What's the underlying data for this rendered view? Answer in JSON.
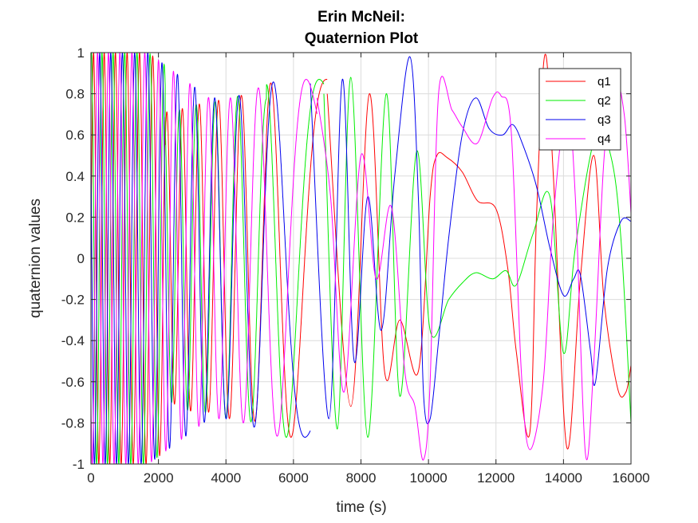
{
  "chart_data": {
    "type": "line",
    "title": [
      "Erin McNeil:",
      "Quaternion Plot"
    ],
    "xlabel": "time (s)",
    "ylabel": "quaternion values",
    "xlim": [
      0,
      16000
    ],
    "ylim": [
      -1,
      1
    ],
    "xticks": [
      0,
      2000,
      4000,
      6000,
      8000,
      10000,
      12000,
      14000,
      16000
    ],
    "xtick_labels": [
      "0",
      "2000",
      "4000",
      "6000",
      "8000",
      "10000",
      "12000",
      "14000",
      "16000"
    ],
    "yticks": [
      -1,
      -0.8,
      -0.6,
      -0.4,
      -0.2,
      0,
      0.2,
      0.4,
      0.6,
      0.8,
      1
    ],
    "ytick_labels": [
      "-1",
      "-0.8",
      "-0.6",
      "-0.4",
      "-0.2",
      "0",
      "0.2",
      "0.4",
      "0.6",
      "0.8",
      "1"
    ],
    "grid": true,
    "box": true,
    "legend": {
      "location": "top-right",
      "entries": [
        "q1",
        "q2",
        "q3",
        "q4"
      ]
    },
    "series": [
      {
        "name": "q1",
        "color": "#ff0000",
        "points": [
          [
            0,
            0.3
          ],
          [
            7000,
            0.8
          ],
          [
            7700,
            -0.72
          ],
          [
            8250,
            0.8
          ],
          [
            8700,
            -0.55
          ],
          [
            9150,
            -0.3
          ],
          [
            9700,
            -0.55
          ],
          [
            10050,
            0.3
          ],
          [
            10250,
            0.5
          ],
          [
            10550,
            0.49
          ],
          [
            11000,
            0.42
          ],
          [
            11450,
            0.28
          ],
          [
            12000,
            0.24
          ],
          [
            12350,
            -0.05
          ],
          [
            12600,
            -0.45
          ],
          [
            13000,
            -0.85
          ],
          [
            13200,
            0.2
          ],
          [
            13450,
            0.99
          ],
          [
            13700,
            0.4
          ],
          [
            14100,
            -0.92
          ],
          [
            14500,
            -0.1
          ],
          [
            14900,
            0.5
          ],
          [
            15200,
            -0.2
          ],
          [
            15600,
            -0.63
          ],
          [
            15850,
            -0.65
          ],
          [
            16000,
            -0.52
          ]
        ]
      },
      {
        "name": "q2",
        "color": "#00ee00",
        "points": [
          [
            0,
            0
          ],
          [
            6900,
            0.8
          ],
          [
            7300,
            -0.83
          ],
          [
            7700,
            0.88
          ],
          [
            8200,
            -0.87
          ],
          [
            8750,
            0.8
          ],
          [
            9150,
            -0.67
          ],
          [
            9650,
            0.52
          ],
          [
            10050,
            -0.35
          ],
          [
            10600,
            -0.2
          ],
          [
            11000,
            -0.12
          ],
          [
            11400,
            -0.07
          ],
          [
            11900,
            -0.1
          ],
          [
            12300,
            -0.06
          ],
          [
            12600,
            -0.13
          ],
          [
            13100,
            0.12
          ],
          [
            13600,
            0.3
          ],
          [
            14000,
            -0.46
          ],
          [
            14350,
            0.05
          ],
          [
            14950,
            0.6
          ],
          [
            15400,
            0.5
          ],
          [
            15700,
            0.1
          ],
          [
            16000,
            -0.8
          ]
        ]
      },
      {
        "name": "q3",
        "color": "#0000ee",
        "points": [
          [
            0,
            0
          ],
          [
            6500,
            0.85
          ],
          [
            7050,
            -0.78
          ],
          [
            7450,
            0.87
          ],
          [
            7800,
            -0.5
          ],
          [
            8200,
            0.3
          ],
          [
            8600,
            -0.35
          ],
          [
            9000,
            0.4
          ],
          [
            9450,
            0.98
          ],
          [
            9700,
            0.3
          ],
          [
            9850,
            -0.65
          ],
          [
            10050,
            -0.78
          ],
          [
            10300,
            -0.4
          ],
          [
            10600,
            0.1
          ],
          [
            11000,
            0.6
          ],
          [
            11400,
            0.78
          ],
          [
            11800,
            0.63
          ],
          [
            12200,
            0.6
          ],
          [
            12500,
            0.65
          ],
          [
            12800,
            0.55
          ],
          [
            13200,
            0.35
          ],
          [
            13600,
            0.05
          ],
          [
            14000,
            -0.18
          ],
          [
            14300,
            -0.1
          ],
          [
            14500,
            -0.08
          ],
          [
            14800,
            -0.45
          ],
          [
            14950,
            -0.6
          ],
          [
            15300,
            -0.05
          ],
          [
            15700,
            0.18
          ],
          [
            16000,
            0.18
          ]
        ]
      },
      {
        "name": "q4",
        "color": "#ff00ff",
        "points": [
          [
            0,
            1
          ],
          [
            6700,
            0.78
          ],
          [
            7100,
            0.3
          ],
          [
            7500,
            -0.65
          ],
          [
            8000,
            0.5
          ],
          [
            8450,
            -0.1
          ],
          [
            8900,
            0.25
          ],
          [
            9300,
            -0.55
          ],
          [
            9600,
            -0.72
          ],
          [
            9850,
            -0.98
          ],
          [
            10050,
            -0.6
          ],
          [
            10300,
            0.8
          ],
          [
            10700,
            0.72
          ],
          [
            11000,
            0.64
          ],
          [
            11450,
            0.56
          ],
          [
            11900,
            0.78
          ],
          [
            12150,
            0.79
          ],
          [
            12450,
            0.62
          ],
          [
            12750,
            -0.55
          ],
          [
            13000,
            -0.93
          ],
          [
            13400,
            -0.6
          ],
          [
            13700,
            0.2
          ],
          [
            14100,
            0.75
          ],
          [
            14350,
            0.3
          ],
          [
            14650,
            -0.95
          ],
          [
            14900,
            -0.5
          ],
          [
            15200,
            0.48
          ],
          [
            15500,
            0.87
          ],
          [
            15800,
            0.7
          ],
          [
            16000,
            0.22
          ]
        ]
      }
    ]
  }
}
